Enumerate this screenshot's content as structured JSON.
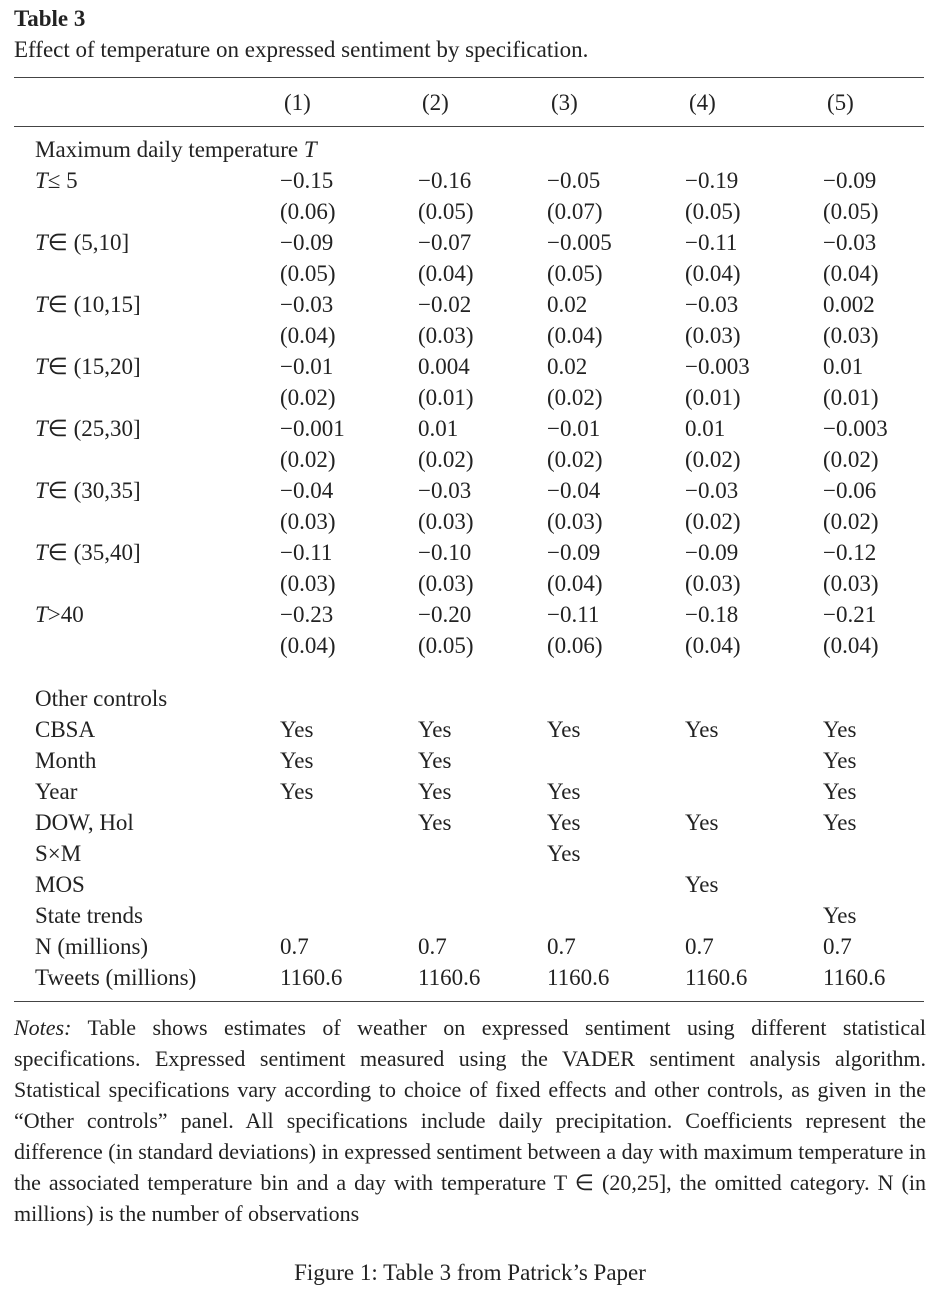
{
  "table_label": "Table 3",
  "table_title": "Effect of temperature on expressed sentiment by specification.",
  "columns": [
    "(1)",
    "(2)",
    "(3)",
    "(4)",
    "(5)"
  ],
  "panel_temperature": {
    "heading": "Maximum daily temperature",
    "heading_symbol": "T",
    "rows": [
      {
        "symbol": "T",
        "bin": "≤ 5",
        "estimates": [
          "−0.15",
          "−0.16",
          "−0.05",
          "−0.19",
          "−0.09"
        ],
        "errors": [
          "(0.06)",
          "(0.05)",
          "(0.07)",
          "(0.05)",
          "(0.05)"
        ]
      },
      {
        "symbol": "T",
        "bin": "∈ (5,10]",
        "estimates": [
          "−0.09",
          "−0.07",
          "−0.005",
          "−0.11",
          "−0.03"
        ],
        "errors": [
          "(0.05)",
          "(0.04)",
          "(0.05)",
          "(0.04)",
          "(0.04)"
        ]
      },
      {
        "symbol": "T",
        "bin": "∈ (10,15]",
        "estimates": [
          "−0.03",
          "−0.02",
          "0.02",
          "−0.03",
          "0.002"
        ],
        "errors": [
          "(0.04)",
          "(0.03)",
          "(0.04)",
          "(0.03)",
          "(0.03)"
        ]
      },
      {
        "symbol": "T",
        "bin": "∈ (15,20]",
        "estimates": [
          "−0.01",
          "0.004",
          "0.02",
          "−0.003",
          "0.01"
        ],
        "errors": [
          "(0.02)",
          "(0.01)",
          "(0.02)",
          "(0.01)",
          "(0.01)"
        ]
      },
      {
        "symbol": "T",
        "bin": "∈ (25,30]",
        "estimates": [
          "−0.001",
          "0.01",
          "−0.01",
          "0.01",
          "−0.003"
        ],
        "errors": [
          "(0.02)",
          "(0.02)",
          "(0.02)",
          "(0.02)",
          "(0.02)"
        ]
      },
      {
        "symbol": "T",
        "bin": "∈ (30,35]",
        "estimates": [
          "−0.04",
          "−0.03",
          "−0.04",
          "−0.03",
          "−0.06"
        ],
        "errors": [
          "(0.03)",
          "(0.03)",
          "(0.03)",
          "(0.02)",
          "(0.02)"
        ]
      },
      {
        "symbol": "T",
        "bin": "∈ (35,40]",
        "estimates": [
          "−0.11",
          "−0.10",
          "−0.09",
          "−0.09",
          "−0.12"
        ],
        "errors": [
          "(0.03)",
          "(0.03)",
          "(0.04)",
          "(0.03)",
          "(0.03)"
        ]
      },
      {
        "symbol": "T",
        "bin": ">40",
        "estimates": [
          "−0.23",
          "−0.20",
          "−0.11",
          "−0.18",
          "−0.21"
        ],
        "errors": [
          "(0.04)",
          "(0.05)",
          "(0.06)",
          "(0.04)",
          "(0.04)"
        ]
      }
    ]
  },
  "panel_controls": {
    "heading": "Other controls",
    "rows": [
      {
        "label": "CBSA",
        "cells": [
          "Yes",
          "Yes",
          "Yes",
          "Yes",
          "Yes"
        ]
      },
      {
        "label": "Month",
        "cells": [
          "Yes",
          "Yes",
          null,
          null,
          "Yes"
        ]
      },
      {
        "label": "Year",
        "cells": [
          "Yes",
          "Yes",
          "Yes",
          null,
          "Yes"
        ]
      },
      {
        "label": "DOW, Hol",
        "cells": [
          null,
          "Yes",
          "Yes",
          "Yes",
          "Yes"
        ]
      },
      {
        "label": "S×M",
        "cells": [
          null,
          null,
          "Yes",
          null,
          null
        ]
      },
      {
        "label": "MOS",
        "cells": [
          null,
          null,
          null,
          "Yes",
          null
        ]
      },
      {
        "label": "State trends",
        "cells": [
          null,
          null,
          null,
          null,
          "Yes"
        ]
      },
      {
        "label": "N (millions)",
        "cells": [
          "0.7",
          "0.7",
          "0.7",
          "0.7",
          "0.7"
        ]
      },
      {
        "label": "Tweets (millions)",
        "cells": [
          "1160.6",
          "1160.6",
          "1160.6",
          "1160.6",
          "1160.6"
        ]
      }
    ]
  },
  "notes_label": "Notes:",
  "notes_text": "Table shows estimates of weather on expressed sentiment using different statistical specifications. Expressed sentiment measured using the VADER sentiment analysis algorithm. Statistical specifications vary according to choice of fixed effects and other controls, as given in the “Other controls” panel. All specifications include daily precipitation. Coefficients represent the difference (in standard deviations) in expressed sentiment between a day with maximum temperature in the associated temperature bin and a day with temperature T ∈ (20,25], the omitted category. N (in millions) is the number of observations",
  "caption": "Figure 1: Table 3 from Patrick’s Paper"
}
